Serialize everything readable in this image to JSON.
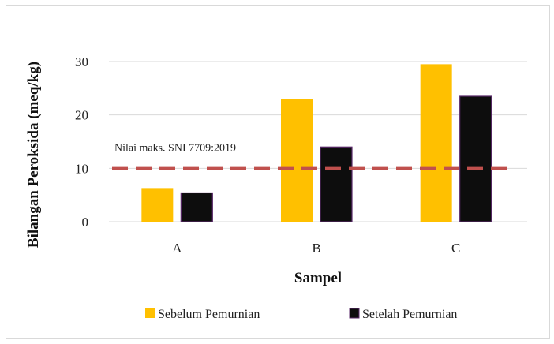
{
  "chart_data": {
    "type": "bar",
    "categories": [
      "A",
      "B",
      "C"
    ],
    "series": [
      {
        "name": "Sebelum Pemurnian",
        "values": [
          6.3,
          23.0,
          29.5
        ],
        "color": "#FFC000"
      },
      {
        "name": "Setelah Pemurnian",
        "values": [
          5.4,
          14.0,
          23.5
        ],
        "color": "#0D0D0D"
      }
    ],
    "xlabel": "Sampel",
    "ylabel": "Bilangan Peroksida (meq/kg)",
    "ylim": [
      0,
      30
    ],
    "yticks": [
      0,
      10,
      20,
      30
    ],
    "grid": true,
    "legend": "bottom",
    "reference_line": {
      "value": 10,
      "label": "Nilai maks. SNI 7709:2019",
      "color": "#C0504D",
      "style": "dashed"
    }
  }
}
